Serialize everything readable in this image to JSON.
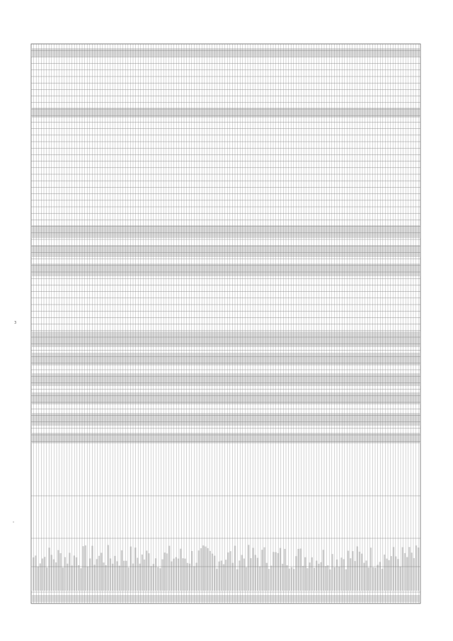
{
  "margin": {
    "marker": "3"
  }
}
